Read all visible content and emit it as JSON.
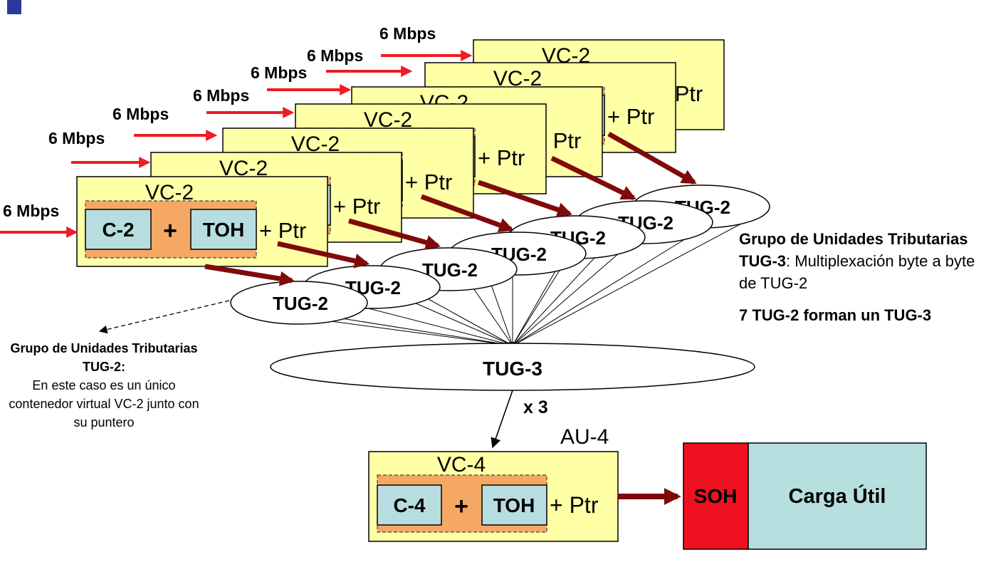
{
  "rate_label": "6 Mbps",
  "vc2": {
    "title": "VC-2",
    "c2": "C-2",
    "plus": "+",
    "toh": "TOH",
    "ptr": "+ Ptr"
  },
  "tug2_label": "TUG-2",
  "tug3_label": "TUG-3",
  "multiplier": "x 3",
  "au4": {
    "title": "AU-4",
    "vc4_title": "VC-4",
    "c4": "C-4",
    "plus": "+",
    "toh": "TOH",
    "ptr": "+ Ptr"
  },
  "frame": {
    "soh": "SOH",
    "payload": "Carga Útil"
  },
  "notes": {
    "tug3_title": "Grupo de Unidades Tributarias TUG-3",
    "tug3_colon": ":",
    "tug3_desc": "Multiplexación byte a byte de TUG-2",
    "tug3_count": "7 TUG-2 forman un TUG-3",
    "tug2_title": "Grupo de Unidades Tributarias TUG-2:",
    "tug2_desc": "En este caso es un único contenedor virtual VC-2 junto con su puntero"
  },
  "colors": {
    "box_fill": "#ffffa6",
    "inner_fill": "#f5a863",
    "sub_fill": "#b8dde0",
    "red_arrow": "#ee1c24",
    "dark_arrow": "#7f0a0a",
    "soh_fill": "#f01020",
    "payload_fill": "#b8dfe0",
    "slide_mark": "#2b3a9c"
  }
}
